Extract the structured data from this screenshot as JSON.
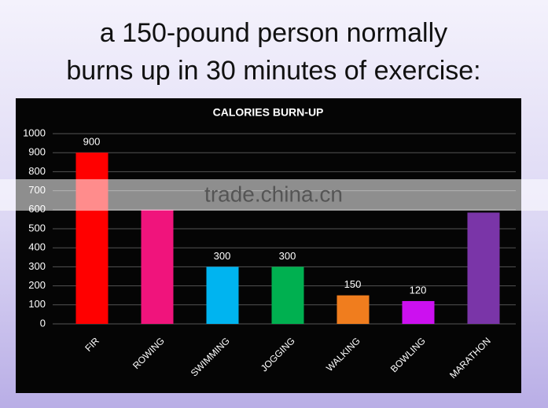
{
  "heading": [
    "a 150-pound person normally",
    "burns up in 30 minutes of exercise:"
  ],
  "watermark": "trade.china.cn",
  "chart_data": {
    "type": "bar",
    "title": "CALORIES BURN-UP",
    "categories": [
      "FIR",
      "ROWING",
      "SWIMMING",
      "JOGGING",
      "WALKING",
      "BOWLING",
      "MARATHON"
    ],
    "values": [
      900,
      600,
      300,
      300,
      150,
      120,
      585
    ],
    "data_labels": [
      900,
      null,
      300,
      300,
      150,
      120,
      null
    ],
    "colors": [
      "#ff0000",
      "#f0147c",
      "#00b4f0",
      "#00b050",
      "#f07d1e",
      "#cc10f0",
      "#7a35a8"
    ],
    "ylim": [
      0,
      1000
    ],
    "yticks": [
      0,
      100,
      200,
      300,
      400,
      500,
      600,
      700,
      800,
      900,
      1000
    ],
    "grid": true
  }
}
